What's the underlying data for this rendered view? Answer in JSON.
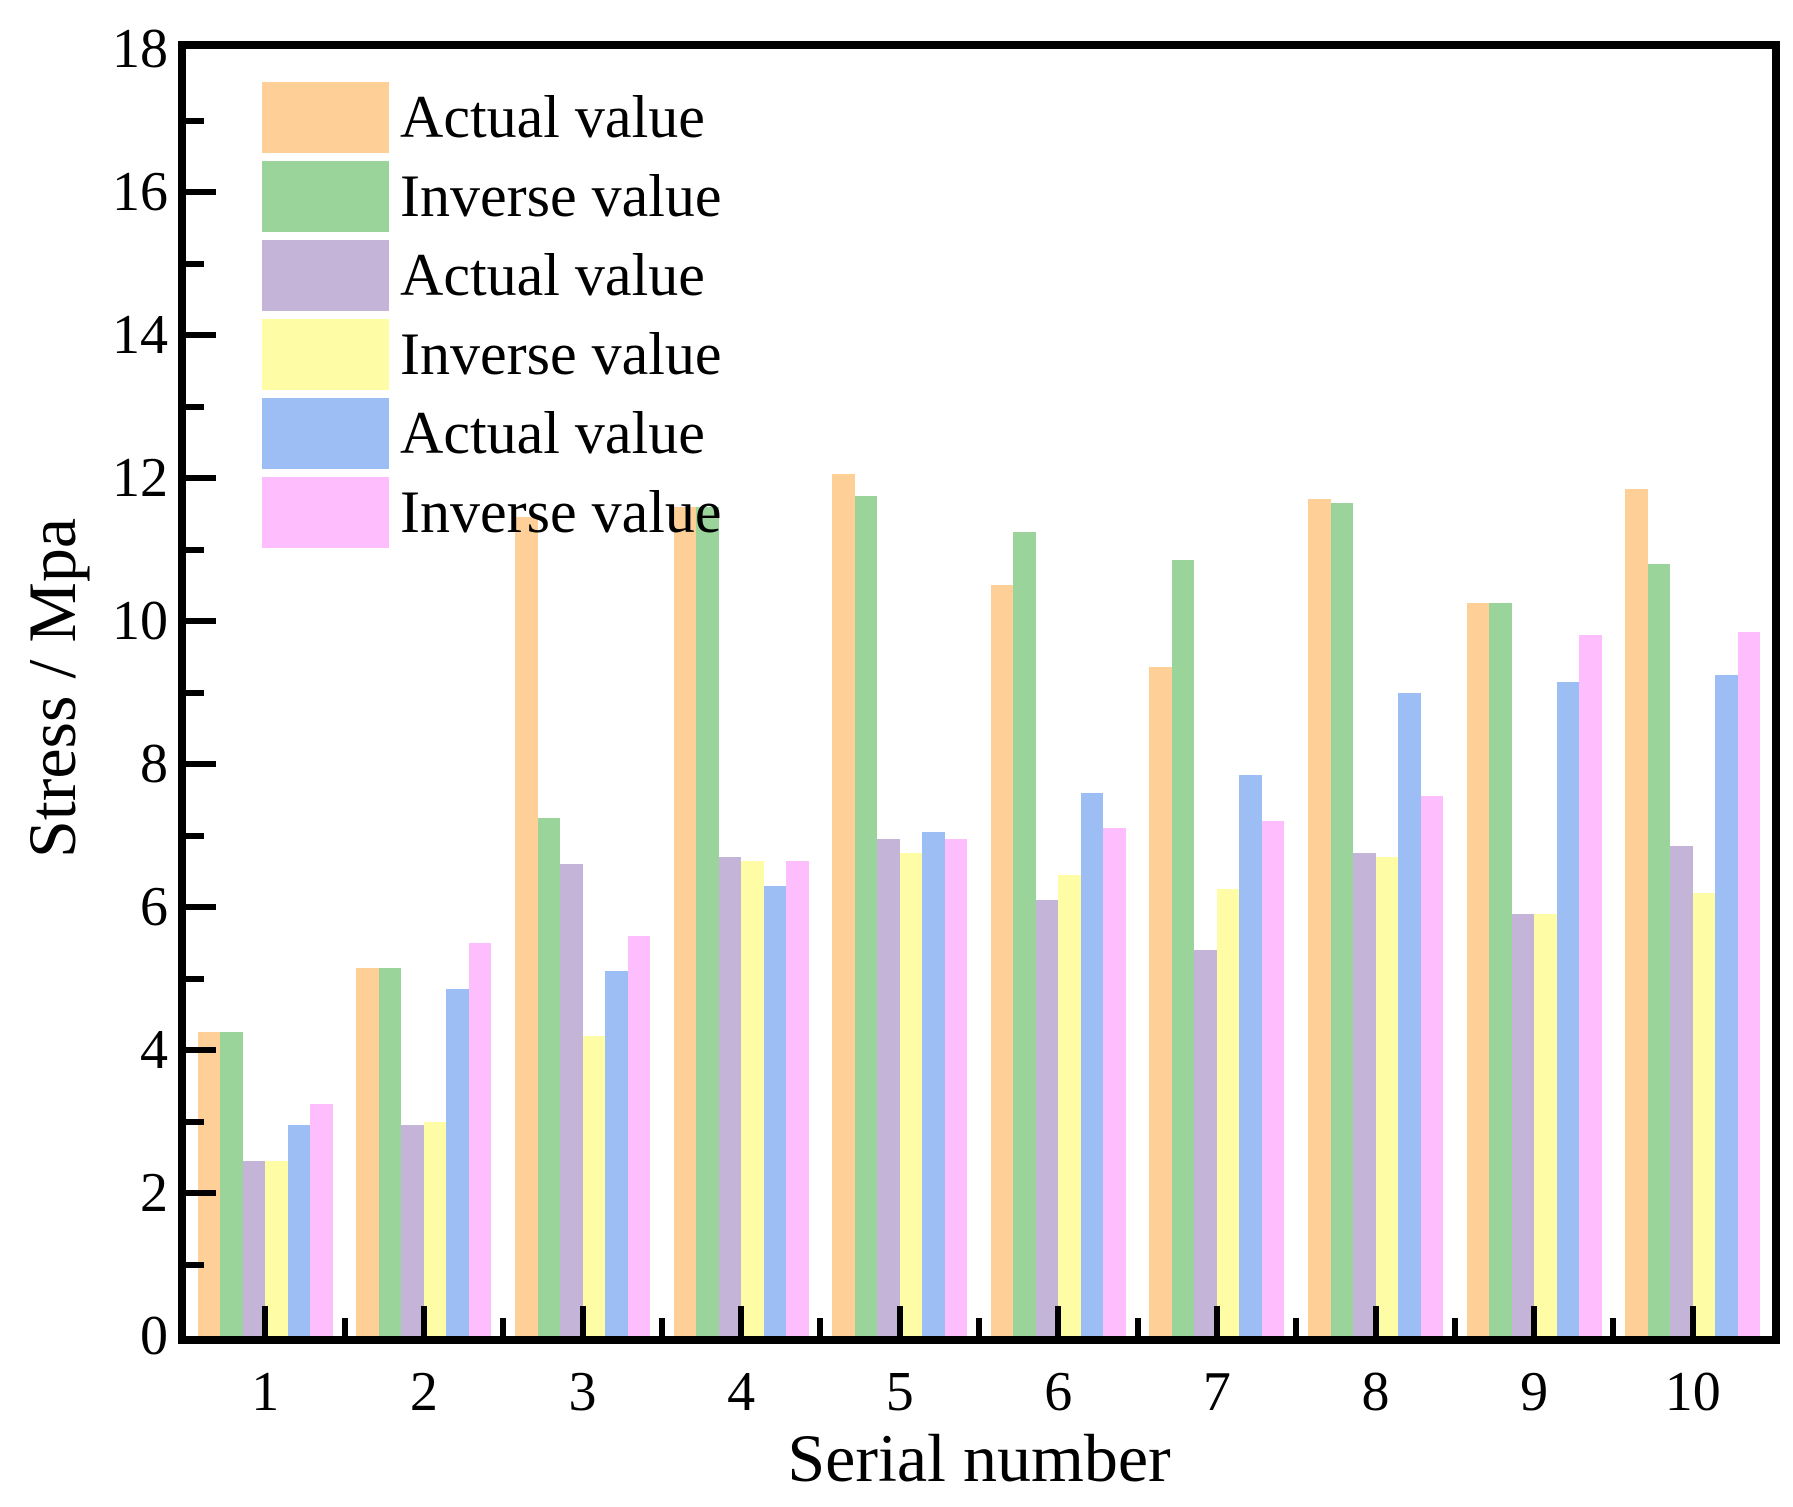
{
  "chart_data": {
    "type": "bar",
    "title": "",
    "xlabel": "Serial number",
    "ylabel": "Stress / Mpa",
    "categories": [
      "1",
      "2",
      "3",
      "4",
      "5",
      "6",
      "7",
      "8",
      "9",
      "10"
    ],
    "ylim": [
      0,
      18
    ],
    "ytick_step": 2,
    "grid": false,
    "legend_position": "top-left-inside",
    "series": [
      {
        "name": "Actual value",
        "color": "#FECF97",
        "values": [
          4.25,
          5.15,
          11.45,
          11.6,
          12.05,
          10.5,
          9.35,
          11.7,
          10.25,
          11.85
        ]
      },
      {
        "name": "Inverse value",
        "color": "#9AD49B",
        "values": [
          4.25,
          5.15,
          7.25,
          11.6,
          11.75,
          11.25,
          10.85,
          11.65,
          10.25,
          10.8
        ]
      },
      {
        "name": "Actual value",
        "color": "#C4B4D8",
        "values": [
          2.45,
          2.95,
          6.6,
          6.7,
          6.95,
          6.1,
          5.4,
          6.75,
          5.9,
          6.85
        ]
      },
      {
        "name": "Inverse value",
        "color": "#FEFDA6",
        "values": [
          2.45,
          3.0,
          4.2,
          6.65,
          6.75,
          6.45,
          6.25,
          6.7,
          5.9,
          6.2
        ]
      },
      {
        "name": "Actual value",
        "color": "#9DBDF5",
        "values": [
          2.95,
          4.85,
          5.1,
          6.3,
          7.05,
          7.6,
          7.85,
          9.0,
          9.15,
          9.25
        ]
      },
      {
        "name": "Inverse value",
        "color": "#FEBEFD",
        "values": [
          3.25,
          5.5,
          5.6,
          6.65,
          6.95,
          7.1,
          7.2,
          7.55,
          9.8,
          9.85
        ]
      }
    ]
  }
}
